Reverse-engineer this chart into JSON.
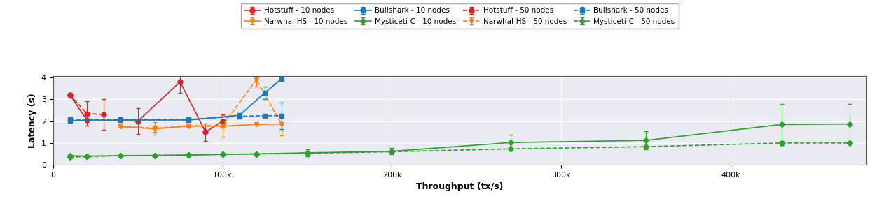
{
  "title": "",
  "xlabel": "Throughput (tx/s)",
  "ylabel": "Latency (s)",
  "xlim": [
    0,
    480000
  ],
  "ylim": [
    0.0,
    4.05
  ],
  "yticks": [
    0.0,
    1.0,
    2.0,
    3.0,
    4.0
  ],
  "xtick_vals": [
    0,
    100000,
    200000,
    300000,
    400000
  ],
  "xtick_labels": [
    "0",
    "100k",
    "200k",
    "300k",
    "400k"
  ],
  "hotstuff_10": {
    "x": [
      10000,
      20000,
      50000,
      75000,
      90000,
      100000
    ],
    "y": [
      3.2,
      2.05,
      2.0,
      3.8,
      1.5,
      2.0
    ],
    "yerr": [
      0.05,
      0.05,
      0.6,
      0.5,
      0.4,
      0.3
    ],
    "color": "#d62728",
    "marker": "o",
    "linestyle": "-",
    "label": "Hotstuff - 10 nodes"
  },
  "hotstuff_50": {
    "x": [
      10000,
      20000,
      30000
    ],
    "y": [
      3.2,
      2.35,
      2.3
    ],
    "yerr": [
      0.05,
      0.55,
      0.7
    ],
    "color": "#d62728",
    "marker": "o",
    "linestyle": "--",
    "label": "Hotstuff - 50 nodes"
  },
  "narwhal_10": {
    "x": [
      40000,
      60000,
      80000,
      100000,
      120000,
      135000
    ],
    "y": [
      1.75,
      1.65,
      1.77,
      1.77,
      1.85,
      1.87
    ],
    "yerr": [
      0.05,
      0.15,
      0.05,
      0.05,
      0.05,
      0.3
    ],
    "color": "#ff7f0e",
    "marker": "v",
    "linestyle": "-",
    "label": "Narwhal-HS - 10 nodes"
  },
  "narwhal_50": {
    "x": [
      40000,
      60000,
      80000,
      100000,
      120000,
      135000
    ],
    "y": [
      1.77,
      1.67,
      1.79,
      1.79,
      3.9,
      1.85
    ],
    "yerr": [
      0.05,
      0.3,
      0.05,
      0.5,
      0.3,
      0.5
    ],
    "color": "#ff7f0e",
    "marker": "v",
    "linestyle": "--",
    "label": "Narwhal-HS - 50 nodes"
  },
  "bullshark_10": {
    "x": [
      10000,
      40000,
      80000,
      110000,
      125000,
      135000
    ],
    "y": [
      2.02,
      2.05,
      2.05,
      2.27,
      3.3,
      3.95
    ],
    "yerr": [
      0.02,
      0.02,
      0.02,
      0.08,
      0.3,
      0.05
    ],
    "color": "#1f77b4",
    "marker": "s",
    "linestyle": "-",
    "label": "Bullshark - 10 nodes"
  },
  "bullshark_50": {
    "x": [
      10000,
      40000,
      80000,
      110000,
      125000,
      135000
    ],
    "y": [
      2.08,
      2.08,
      2.08,
      2.22,
      2.25,
      2.25
    ],
    "yerr": [
      0.05,
      0.05,
      0.05,
      0.05,
      0.05,
      0.6
    ],
    "color": "#1f77b4",
    "marker": "s",
    "linestyle": "--",
    "label": "Bullshark - 50 nodes"
  },
  "mysticeti_10": {
    "x": [
      10000,
      20000,
      40000,
      60000,
      80000,
      100000,
      120000,
      150000,
      200000,
      270000,
      350000,
      430000,
      470000
    ],
    "y": [
      0.42,
      0.4,
      0.42,
      0.43,
      0.45,
      0.48,
      0.5,
      0.55,
      0.62,
      1.02,
      1.12,
      1.85,
      1.87
    ],
    "yerr": [
      0.03,
      0.03,
      0.03,
      0.03,
      0.03,
      0.03,
      0.05,
      0.15,
      0.15,
      0.35,
      0.42,
      0.95,
      0.9
    ],
    "color": "#2ca02c",
    "marker": "D",
    "linestyle": "-",
    "label": "Mysticeti-C - 10 nodes"
  },
  "mysticeti_50": {
    "x": [
      10000,
      20000,
      40000,
      60000,
      80000,
      100000,
      120000,
      150000,
      200000,
      270000,
      350000,
      430000,
      470000
    ],
    "y": [
      0.35,
      0.38,
      0.42,
      0.43,
      0.45,
      0.48,
      0.5,
      0.53,
      0.6,
      0.73,
      0.83,
      1.0,
      1.0
    ],
    "yerr": [
      0.03,
      0.03,
      0.03,
      0.03,
      0.03,
      0.03,
      0.05,
      0.05,
      0.05,
      0.08,
      0.08,
      0.1,
      0.08
    ],
    "color": "#2ca02c",
    "marker": "D",
    "linestyle": "--",
    "label": "Mysticeti-C - 50 nodes"
  },
  "legend_ncol": 4,
  "legend_fontsize": 7.5,
  "axis_fontsize": 9,
  "tick_fontsize": 8,
  "bg_color": "#eaeaf2",
  "grid_color": "#ffffff",
  "figsize": [
    12.62,
    2.88
  ],
  "dpi": 100
}
